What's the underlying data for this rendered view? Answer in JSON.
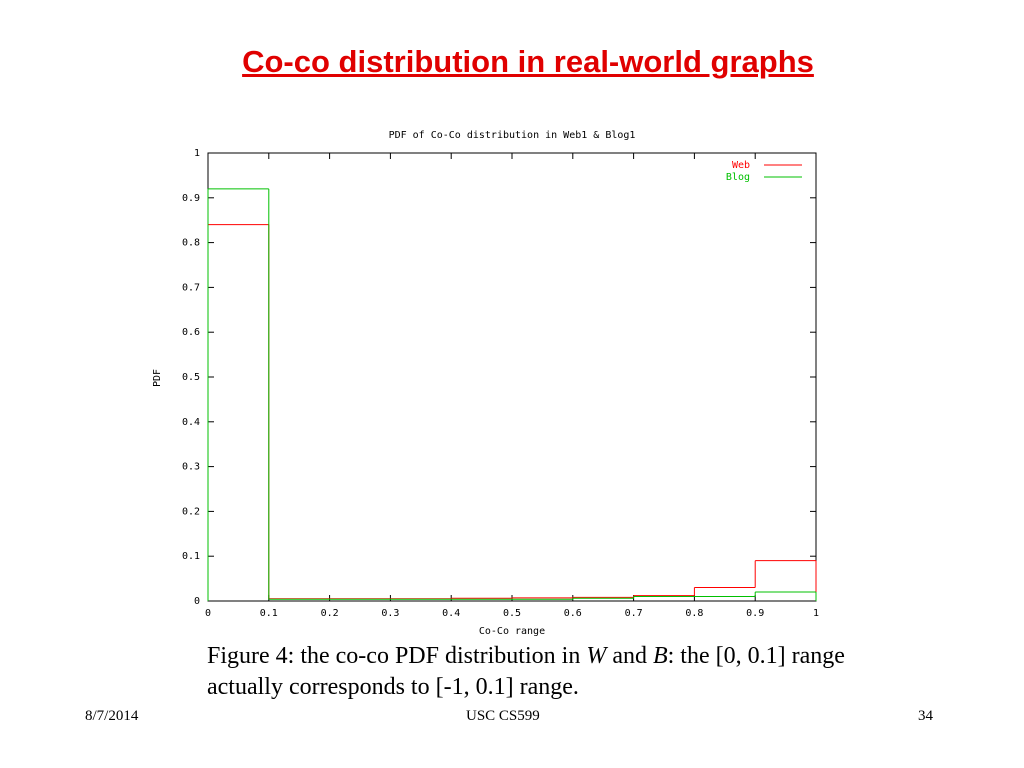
{
  "slide": {
    "title": "Co-co distribution in real-world graphs",
    "caption": [
      "Figure 4: the co-co PDF distribution in ",
      "W",
      " and ",
      "B",
      ": the [0, 0.1] range actually corresponds to [-1, 0.1] range."
    ],
    "date": "8/7/2014",
    "footer": "USC CS599",
    "page_number": "34"
  },
  "chart_data": {
    "type": "histogram",
    "title": "PDF of Co-Co distribution in Web1 & Blog1",
    "x_label": "Co-Co range",
    "y_label": "PDF",
    "bins": [
      0,
      0.1,
      0.2,
      0.3,
      0.4,
      0.5,
      0.6,
      0.7,
      0.8,
      0.9,
      1
    ],
    "series": [
      {
        "name": "Web",
        "color": "#ff0000",
        "values": [
          0.84,
          0.005,
          0.005,
          0.005,
          0.006,
          0.007,
          0.008,
          0.012,
          0.03,
          0.09
        ]
      },
      {
        "name": "Blog",
        "color": "#00c000",
        "values": [
          0.92,
          0.004,
          0.004,
          0.004,
          0.004,
          0.004,
          0.006,
          0.01,
          0.01,
          0.02
        ]
      }
    ],
    "xlim": [
      0,
      1
    ],
    "ylim": [
      0,
      1
    ],
    "xticks": [
      0,
      0.1,
      0.2,
      0.3,
      0.4,
      0.5,
      0.6,
      0.7,
      0.8,
      0.9,
      1
    ],
    "yticks": [
      0,
      0.1,
      0.2,
      0.3,
      0.4,
      0.5,
      0.6,
      0.7,
      0.8,
      0.9,
      1
    ],
    "legend": "upper right"
  }
}
